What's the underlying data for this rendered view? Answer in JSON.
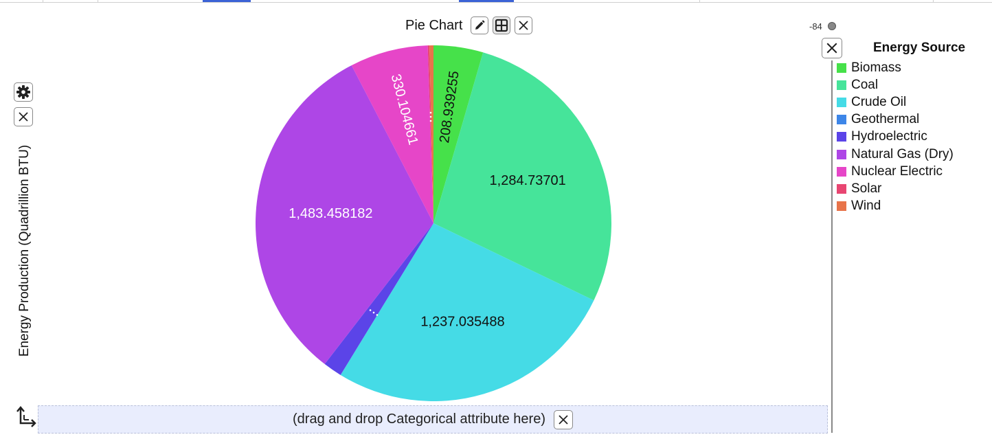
{
  "header": {
    "title": "Pie Chart",
    "buttons": [
      {
        "name": "edit-button",
        "icon": "pencil-icon"
      },
      {
        "name": "layout-button",
        "icon": "grid-icon"
      },
      {
        "name": "close-chart-button",
        "icon": "close-icon"
      }
    ]
  },
  "drop_zone": {
    "text": "(drag and drop Categorical attribute here)"
  },
  "slider": {
    "value_label": "-84"
  },
  "chart_data": {
    "type": "pie",
    "title": "Pie Chart",
    "ylabel": "Energy Production (Quadrillion BTU)",
    "legend_title": "Energy Source",
    "legend_position": "right",
    "categories": [
      "Biomass",
      "Coal",
      "Crude Oil",
      "Geothermal",
      "Hydroelectric",
      "Natural Gas (Dry)",
      "Nuclear Electric",
      "Solar",
      "Wind"
    ],
    "values": [
      208.939255,
      1284.73701,
      1237.035488,
      0.4,
      80.0,
      1483.458182,
      330.104661,
      7.0,
      17.0
    ],
    "data_labels": [
      "208.939255",
      "1,284.73701",
      "1,237.035488",
      "",
      "",
      "1,483.458182",
      "330.104661",
      "",
      ""
    ],
    "colors": [
      "#46e14a",
      "#46e49a",
      "#45dbe6",
      "#3d86e8",
      "#5b44e8",
      "#ae46e6",
      "#e646c8",
      "#e84672",
      "#e8744a"
    ]
  }
}
